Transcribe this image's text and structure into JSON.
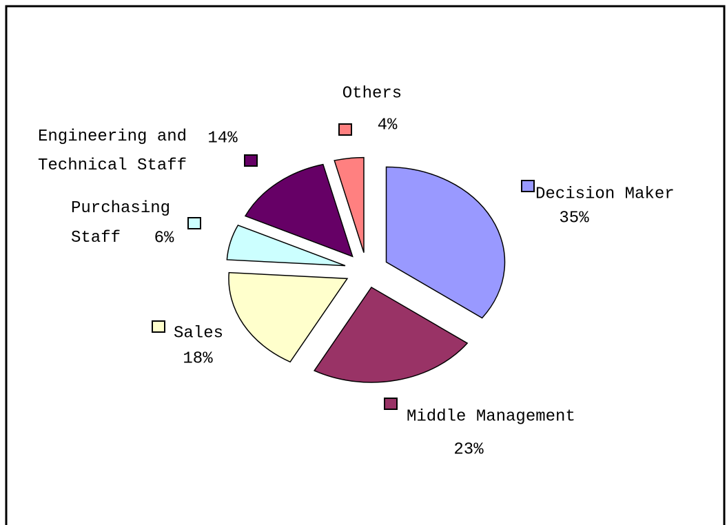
{
  "chart_data": {
    "type": "pie",
    "categories": [
      "Decision Maker",
      "Middle Management",
      "Sales",
      "Purchasing Staff",
      "Engineering and Technical Staff",
      "Others"
    ],
    "values": [
      35,
      23,
      18,
      6,
      14,
      4
    ],
    "value_labels": [
      "35%",
      "23%",
      "18%",
      "6%",
      "14%",
      "4%"
    ],
    "colors": [
      "#9999ff",
      "#993366",
      "#ffffcc",
      "#ccffff",
      "#660066",
      "#ff8080"
    ]
  }
}
